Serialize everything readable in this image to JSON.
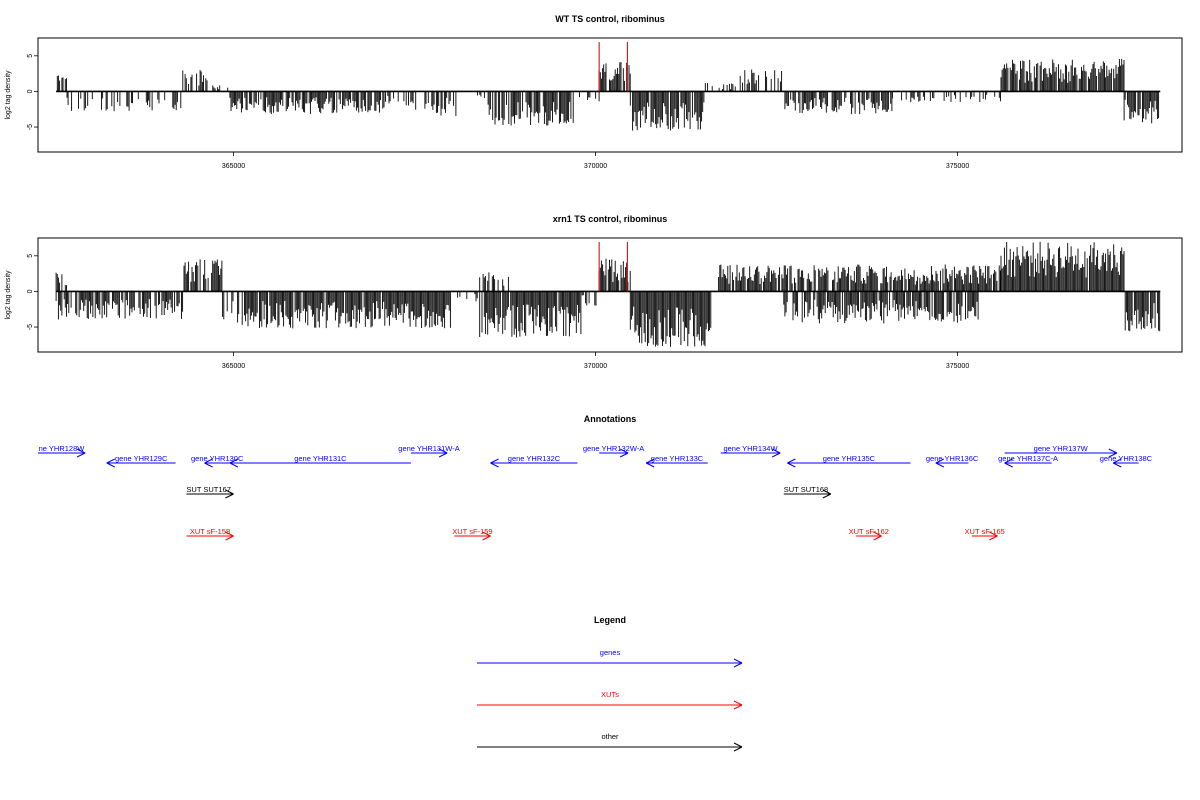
{
  "colors": {
    "genes": "#0000ff",
    "xuts": "#ff0000",
    "other": "#000000",
    "axis": "#000000",
    "marker": "#cc0000"
  },
  "chart_data": [
    {
      "type": "bar",
      "title": "WT TS control, ribominus",
      "ylabel": "log2 tag density",
      "xlim": [
        362300,
        378100
      ],
      "ylim": [
        -8.5,
        7.5
      ],
      "x_ticks": [
        365000,
        370000,
        375000
      ],
      "x_tick_labels": [
        "365000",
        "370000",
        "375000"
      ],
      "y_ticks": [
        -5,
        0,
        5
      ],
      "y_tick_labels": [
        "-5",
        "0",
        "5"
      ],
      "baseline": 0,
      "markers": [
        370050,
        370440
      ],
      "regions": [
        {
          "start": 362550,
          "end": 362700,
          "kind": "pos",
          "amp": 3.0,
          "density": 0.7
        },
        {
          "start": 362700,
          "end": 364300,
          "kind": "neg",
          "amp": 2.8,
          "density": 0.35
        },
        {
          "start": 364300,
          "end": 364650,
          "kind": "pos",
          "amp": 3.2,
          "density": 0.7
        },
        {
          "start": 364650,
          "end": 364950,
          "kind": "pos",
          "amp": 1.0,
          "density": 0.3
        },
        {
          "start": 364950,
          "end": 367100,
          "kind": "neg",
          "amp": 3.2,
          "density": 0.8
        },
        {
          "start": 367100,
          "end": 367500,
          "kind": "neg",
          "amp": 2.0,
          "density": 0.4
        },
        {
          "start": 367500,
          "end": 368100,
          "kind": "neg",
          "amp": 3.5,
          "density": 0.5
        },
        {
          "start": 368100,
          "end": 368500,
          "kind": "neg",
          "amp": 1.0,
          "density": 0.2
        },
        {
          "start": 368500,
          "end": 369700,
          "kind": "neg",
          "amp": 4.8,
          "density": 0.8
        },
        {
          "start": 369700,
          "end": 370050,
          "kind": "neg",
          "amp": 1.5,
          "density": 0.3
        },
        {
          "start": 370050,
          "end": 370480,
          "kind": "pos",
          "amp": 4.2,
          "density": 0.8
        },
        {
          "start": 370480,
          "end": 371500,
          "kind": "neg",
          "amp": 5.5,
          "density": 0.9
        },
        {
          "start": 371500,
          "end": 371950,
          "kind": "pos",
          "amp": 1.2,
          "density": 0.3
        },
        {
          "start": 371950,
          "end": 372600,
          "kind": "pos",
          "amp": 3.2,
          "density": 0.6
        },
        {
          "start": 372600,
          "end": 374100,
          "kind": "neg",
          "amp": 3.2,
          "density": 0.8
        },
        {
          "start": 374100,
          "end": 375600,
          "kind": "neg",
          "amp": 1.5,
          "density": 0.3
        },
        {
          "start": 375600,
          "end": 377300,
          "kind": "pos",
          "amp": 4.6,
          "density": 0.95
        },
        {
          "start": 377300,
          "end": 377800,
          "kind": "neg",
          "amp": 4.5,
          "density": 0.8
        }
      ]
    },
    {
      "type": "bar",
      "title": "xrn1 TS control, ribominus",
      "ylabel": "log2 tag density",
      "xlim": [
        362300,
        378100
      ],
      "ylim": [
        -8.5,
        7.5
      ],
      "x_ticks": [
        365000,
        370000,
        375000
      ],
      "x_tick_labels": [
        "365000",
        "370000",
        "375000"
      ],
      "y_ticks": [
        -5,
        0,
        5
      ],
      "y_tick_labels": [
        "-5",
        "0",
        "5"
      ],
      "baseline": 0,
      "markers": [
        370050,
        370440
      ],
      "regions": [
        {
          "start": 362550,
          "end": 362700,
          "kind": "pos",
          "amp": 3.0,
          "density": 0.7
        },
        {
          "start": 362550,
          "end": 364300,
          "kind": "neg",
          "amp": 4.0,
          "density": 0.8
        },
        {
          "start": 364300,
          "end": 364850,
          "kind": "pos",
          "amp": 4.5,
          "density": 0.7
        },
        {
          "start": 364850,
          "end": 365200,
          "kind": "neg",
          "amp": 5.5,
          "density": 0.5
        },
        {
          "start": 365200,
          "end": 368000,
          "kind": "neg",
          "amp": 5.2,
          "density": 0.95
        },
        {
          "start": 368000,
          "end": 368400,
          "kind": "neg",
          "amp": 1.5,
          "density": 0.3
        },
        {
          "start": 368400,
          "end": 368800,
          "kind": "pos",
          "amp": 2.8,
          "density": 0.6
        },
        {
          "start": 368400,
          "end": 369800,
          "kind": "neg",
          "amp": 6.5,
          "density": 0.95
        },
        {
          "start": 369800,
          "end": 370050,
          "kind": "neg",
          "amp": 2.0,
          "density": 0.4
        },
        {
          "start": 370050,
          "end": 370480,
          "kind": "pos",
          "amp": 5.0,
          "density": 0.9
        },
        {
          "start": 370480,
          "end": 371600,
          "kind": "neg",
          "amp": 7.8,
          "density": 0.95
        },
        {
          "start": 371700,
          "end": 375600,
          "kind": "pos",
          "amp": 3.8,
          "density": 0.85
        },
        {
          "start": 372600,
          "end": 375300,
          "kind": "neg",
          "amp": 4.5,
          "density": 0.8
        },
        {
          "start": 375600,
          "end": 377300,
          "kind": "pos",
          "amp": 7.0,
          "density": 0.98
        },
        {
          "start": 377300,
          "end": 377800,
          "kind": "neg",
          "amp": 6.0,
          "density": 0.9
        }
      ]
    }
  ],
  "annotations": {
    "title": "Annotations",
    "genes": [
      {
        "label": "ne YHR128W",
        "start": 362300,
        "end": 362950,
        "strand": "+"
      },
      {
        "label": "gene YHR129C",
        "start": 363250,
        "end": 364200,
        "strand": "-"
      },
      {
        "label": "gene YHR130C",
        "start": 364600,
        "end": 364950,
        "strand": "-"
      },
      {
        "label": "gene YHR131C",
        "start": 364950,
        "end": 367450,
        "strand": "-"
      },
      {
        "label": "gene YHR131W-A",
        "start": 367450,
        "end": 367950,
        "strand": "+"
      },
      {
        "label": "gene YHR132C",
        "start": 368550,
        "end": 369750,
        "strand": "-"
      },
      {
        "label": "gene YHR132W-A",
        "start": 370050,
        "end": 370450,
        "strand": "+"
      },
      {
        "label": "gene YHR133C",
        "start": 370700,
        "end": 371550,
        "strand": "-"
      },
      {
        "label": "gene YHR134W",
        "start": 371730,
        "end": 372550,
        "strand": "+"
      },
      {
        "label": "gene YHR135C",
        "start": 372650,
        "end": 374350,
        "strand": "-"
      },
      {
        "label": "gene YHR136C",
        "start": 374700,
        "end": 375150,
        "strand": "-"
      },
      {
        "label": "gene YHR137W",
        "start": 375650,
        "end": 377200,
        "strand": "+"
      },
      {
        "label": "gene YHR137C-A",
        "start": 375650,
        "end": 376300,
        "strand": "-"
      },
      {
        "label": "gene YHR138C",
        "start": 377150,
        "end": 377500,
        "strand": "-"
      }
    ],
    "other": [
      {
        "label": "SUT SUT167",
        "start": 364350,
        "end": 365000,
        "strand": "+"
      },
      {
        "label": "SUT SUT168",
        "start": 372600,
        "end": 373250,
        "strand": "+"
      }
    ],
    "xuts": [
      {
        "label": "XUT sF-158",
        "start": 364350,
        "end": 365000,
        "strand": "+"
      },
      {
        "label": "XUT sF-159",
        "start": 368050,
        "end": 368550,
        "strand": "+"
      },
      {
        "label": "XUT sF-162",
        "start": 373600,
        "end": 373950,
        "strand": "+"
      },
      {
        "label": "XUT sF-165",
        "start": 375200,
        "end": 375550,
        "strand": "+"
      }
    ]
  },
  "legend": {
    "title": "Legend",
    "items": [
      {
        "label": "genes",
        "color_key": "genes"
      },
      {
        "label": "XUTs",
        "color_key": "xuts"
      },
      {
        "label": "other",
        "color_key": "other"
      }
    ]
  }
}
